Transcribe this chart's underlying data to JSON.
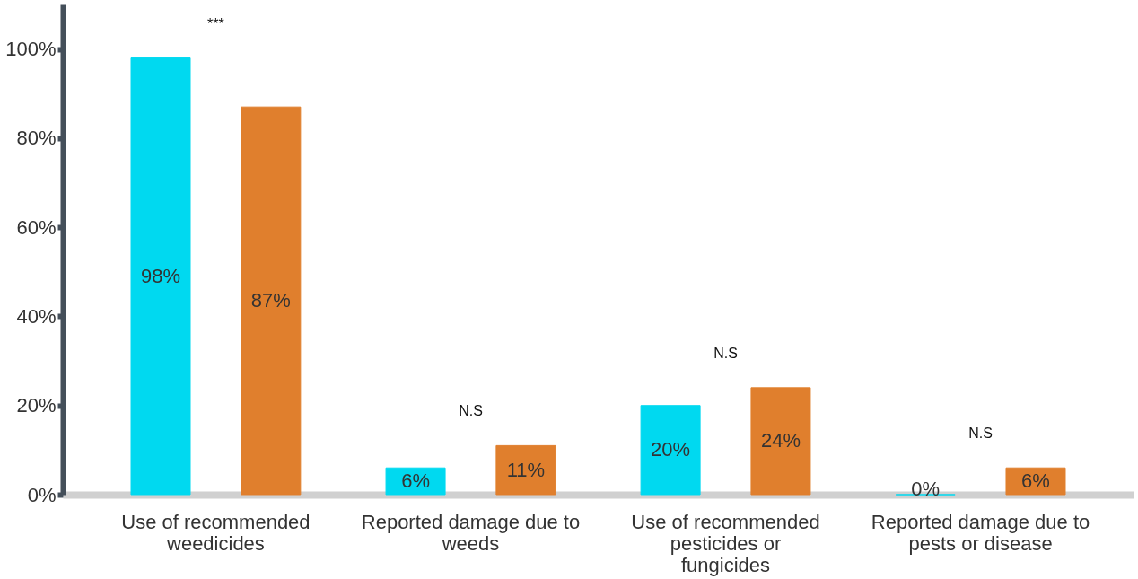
{
  "chart_data": {
    "type": "bar",
    "categories": [
      "Use of recommended weedicides",
      "Reported damage due to weeds",
      "Use of recommended pesticides or fungicides",
      "Reported damage due to pests or disease"
    ],
    "series": [
      {
        "color": "#00d9f0",
        "values": [
          98,
          6,
          20,
          0
        ],
        "value_labels": [
          "98%",
          "6%",
          "20%",
          "0%"
        ]
      },
      {
        "color": "#e07f2d",
        "values": [
          87,
          11,
          24,
          6
        ],
        "value_labels": [
          "87%",
          "11%",
          "24%",
          "6%"
        ]
      }
    ],
    "ylim": [
      0,
      110
    ],
    "yticks": [
      {
        "value": 0,
        "label": "0%"
      },
      {
        "value": 20,
        "label": "20%"
      },
      {
        "value": 40,
        "label": "40%"
      },
      {
        "value": 60,
        "label": "60%"
      },
      {
        "value": 80,
        "label": "80%"
      },
      {
        "value": 100,
        "label": "100%"
      }
    ],
    "grid": false,
    "legend": false,
    "annotations": [
      "***",
      "N.S",
      "N.S",
      "N.S"
    ]
  }
}
